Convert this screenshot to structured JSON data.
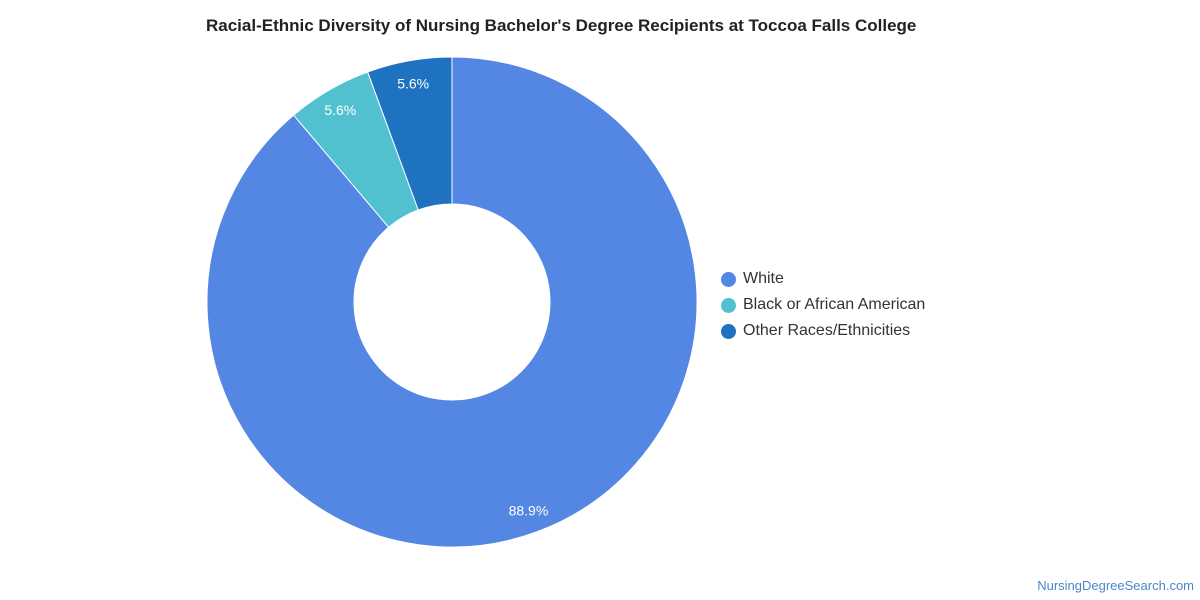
{
  "chart_data": {
    "type": "pie",
    "style": "donut",
    "title": "Racial-Ethnic Diversity of Nursing Bachelor's Degree Recipients at Toccoa Falls College",
    "categories": [
      "White",
      "Black or African American",
      "Other Races/Ethnicities"
    ],
    "values": [
      88.9,
      5.6,
      5.6
    ],
    "value_labels": [
      "88.9%",
      "5.6%",
      "5.6%"
    ],
    "colors": [
      "#5486e3",
      "#52c1cf",
      "#1f72bf"
    ],
    "legend_position": "right"
  },
  "watermark": "NursingDegreeSearch.com"
}
